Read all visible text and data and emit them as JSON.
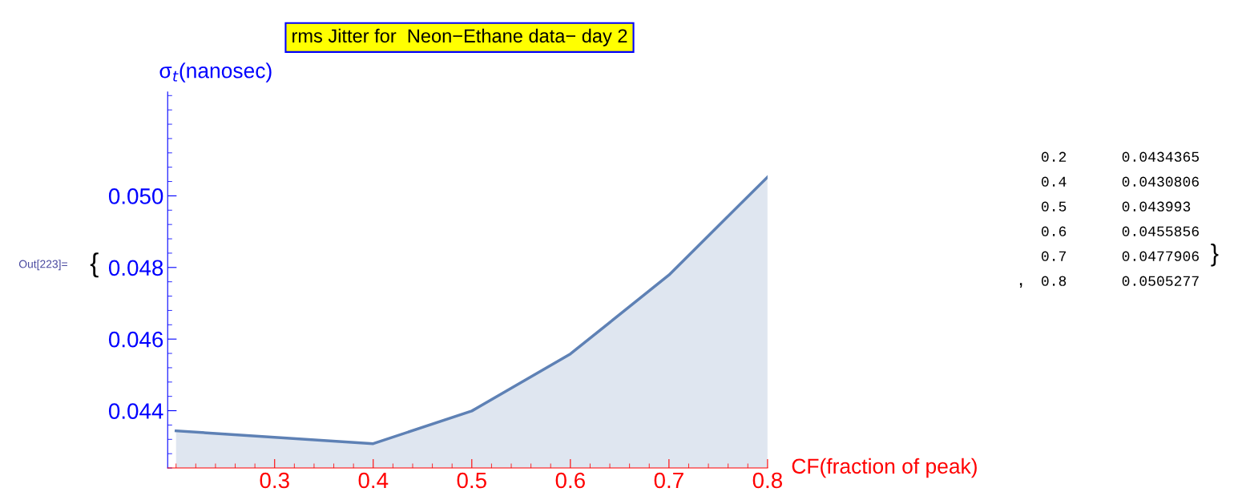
{
  "chart_data": {
    "type": "area",
    "title": "rms Jitter for  Neon−Ethane data− day 2",
    "xlabel": "CF(fraction of peak)",
    "ylabel": "σ$_{t}$(nanosec)",
    "x": [
      0.2,
      0.4,
      0.5,
      0.6,
      0.7,
      0.8
    ],
    "series": [
      {
        "color": "#5e81b5",
        "values": [
          0.0434365,
          0.0430806,
          0.043993,
          0.0455856,
          0.0477906,
          0.0505277
        ]
      }
    ],
    "value_labels": [
      "0.0434365",
      "0.0430806",
      "0.043993",
      "0.0455856",
      "0.0477906",
      "0.0505277"
    ],
    "xlim": [
      0.1915,
      0.8
    ],
    "xticks": [
      0.3,
      0.4,
      0.5,
      0.6,
      0.7,
      0.8
    ],
    "ylim": [
      0.0424,
      0.0529
    ],
    "yticks": [
      0.044,
      0.046,
      0.048,
      {
        "value": 0.05,
        "label": "0.050"
      }
    ],
    "annotations": [
      "Out[223]=",
      "{",
      ",",
      "}",
      "0.2",
      "0.4",
      "0.5",
      "0.6",
      "0.7",
      "0.8"
    ],
    "grid": false,
    "legend": false
  }
}
